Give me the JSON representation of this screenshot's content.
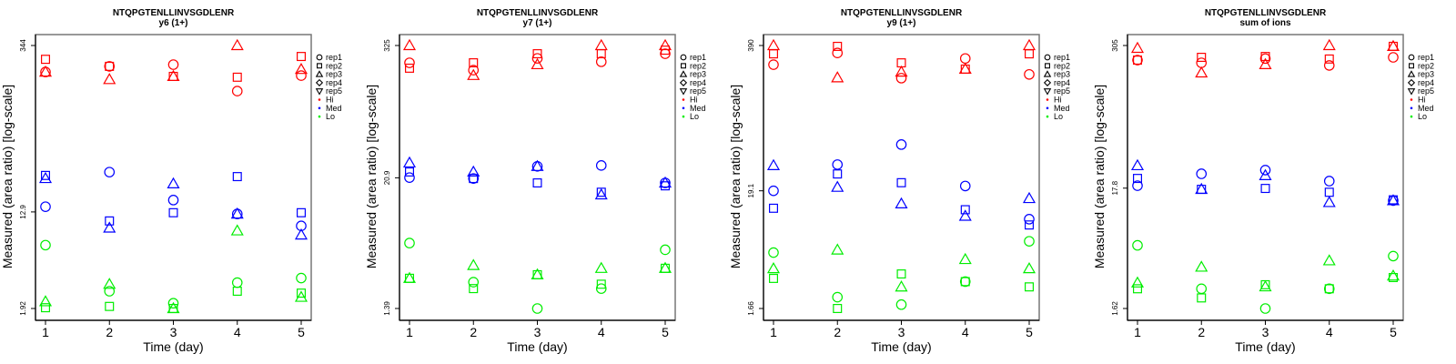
{
  "colors": {
    "Hi": "#ff0000",
    "Med": "#0000ff",
    "Lo": "#00ee00"
  },
  "chart_data": [
    {
      "type": "scatter",
      "title": "NTQPGTENLLINVSGDLENR",
      "subtitle": "y6 (1+)",
      "xlabel": "Time (day)",
      "ylabel": "Measured (area ratio) [log-scale]",
      "yscale": "log",
      "x_ticks": [
        "1",
        "2",
        "3",
        "4",
        "5"
      ],
      "y_ticks": [
        {
          "value": 344,
          "label": "344"
        },
        {
          "value": 12.9,
          "label": "12.9"
        },
        {
          "value": 1.92,
          "label": "1.92"
        }
      ],
      "ylim": [
        1.92,
        344
      ],
      "legend": [
        "rep1",
        "rep2",
        "rep3",
        "rep4",
        "rep5",
        "Hi",
        "Med",
        "Lo"
      ],
      "points": [
        [
          1,
          "Hi",
          "rep2",
          262
        ],
        [
          1,
          "Hi",
          "rep1",
          204
        ],
        [
          1,
          "Hi",
          "rep3",
          204
        ],
        [
          1,
          "Med",
          "rep2",
          26.5
        ],
        [
          1,
          "Med",
          "rep3",
          25.0
        ],
        [
          1,
          "Med",
          "rep1",
          14.3
        ],
        [
          1,
          "Lo",
          "rep1",
          6.7
        ],
        [
          1,
          "Lo",
          "rep3",
          2.2
        ],
        [
          1,
          "Lo",
          "rep2",
          1.95
        ],
        [
          2,
          "Hi",
          "rep1",
          228
        ],
        [
          2,
          "Hi",
          "rep2",
          228
        ],
        [
          2,
          "Hi",
          "rep3",
          176
        ],
        [
          2,
          "Med",
          "rep1",
          28.3
        ],
        [
          2,
          "Med",
          "rep2",
          10.8
        ],
        [
          2,
          "Med",
          "rep3",
          9.4
        ],
        [
          2,
          "Lo",
          "rep3",
          3.1
        ],
        [
          2,
          "Lo",
          "rep1",
          2.7
        ],
        [
          2,
          "Lo",
          "rep2",
          2.0
        ],
        [
          3,
          "Hi",
          "rep1",
          236
        ],
        [
          3,
          "Hi",
          "rep2",
          187
        ],
        [
          3,
          "Hi",
          "rep3",
          187
        ],
        [
          3,
          "Med",
          "rep3",
          22.5
        ],
        [
          3,
          "Med",
          "rep1",
          16.3
        ],
        [
          3,
          "Med",
          "rep2",
          12.7
        ],
        [
          3,
          "Lo",
          "rep1",
          2.13
        ],
        [
          3,
          "Lo",
          "rep2",
          1.92
        ],
        [
          3,
          "Lo",
          "rep3",
          1.92
        ],
        [
          4,
          "Hi",
          "rep3",
          344
        ],
        [
          4,
          "Hi",
          "rep2",
          184
        ],
        [
          4,
          "Hi",
          "rep1",
          140
        ],
        [
          4,
          "Med",
          "rep2",
          25.9
        ],
        [
          4,
          "Med",
          "rep1",
          12.4
        ],
        [
          4,
          "Med",
          "rep3",
          12.4
        ],
        [
          4,
          "Lo",
          "rep3",
          8.9
        ],
        [
          4,
          "Lo",
          "rep1",
          3.2
        ],
        [
          4,
          "Lo",
          "rep2",
          2.7
        ],
        [
          5,
          "Hi",
          "rep2",
          277
        ],
        [
          5,
          "Hi",
          "rep3",
          215
        ],
        [
          5,
          "Hi",
          "rep1",
          190
        ],
        [
          5,
          "Med",
          "rep2",
          12.7
        ],
        [
          5,
          "Med",
          "rep1",
          9.8
        ],
        [
          5,
          "Med",
          "rep3",
          8.2
        ],
        [
          5,
          "Lo",
          "rep1",
          3.5
        ],
        [
          5,
          "Lo",
          "rep2",
          2.6
        ],
        [
          5,
          "Lo",
          "rep3",
          2.4
        ]
      ]
    },
    {
      "type": "scatter",
      "title": "NTQPGTENLLINVSGDLENR",
      "subtitle": "y7 (1+)",
      "xlabel": "Time (day)",
      "ylabel": "Measured (area ratio) [log-scale]",
      "yscale": "log",
      "x_ticks": [
        "1",
        "2",
        "3",
        "4",
        "5"
      ],
      "y_ticks": [
        {
          "value": 325,
          "label": "325"
        },
        {
          "value": 20.9,
          "label": "20.9"
        },
        {
          "value": 1.39,
          "label": "1.39"
        }
      ],
      "ylim": [
        1.39,
        325
      ],
      "legend": [
        "rep1",
        "rep2",
        "rep3",
        "rep4",
        "rep5",
        "Hi",
        "Med",
        "Lo"
      ],
      "points": [
        [
          1,
          "Hi",
          "rep3",
          325
        ],
        [
          1,
          "Hi",
          "rep1",
          227
        ],
        [
          1,
          "Hi",
          "rep2",
          203
        ],
        [
          1,
          "Med",
          "rep3",
          28.5
        ],
        [
          1,
          "Med",
          "rep2",
          23.6
        ],
        [
          1,
          "Med",
          "rep1",
          21.0
        ],
        [
          1,
          "Lo",
          "rep1",
          5.4
        ],
        [
          1,
          "Lo",
          "rep3",
          2.6
        ],
        [
          1,
          "Lo",
          "rep2",
          2.6
        ],
        [
          2,
          "Hi",
          "rep2",
          227
        ],
        [
          2,
          "Hi",
          "rep1",
          195
        ],
        [
          2,
          "Hi",
          "rep3",
          175
        ],
        [
          2,
          "Med",
          "rep3",
          23.6
        ],
        [
          2,
          "Med",
          "rep2",
          20.6
        ],
        [
          2,
          "Med",
          "rep1",
          20.6
        ],
        [
          2,
          "Lo",
          "rep3",
          3.4
        ],
        [
          2,
          "Lo",
          "rep1",
          2.4
        ],
        [
          2,
          "Lo",
          "rep2",
          2.1
        ],
        [
          3,
          "Hi",
          "rep2",
          274
        ],
        [
          3,
          "Hi",
          "rep1",
          249
        ],
        [
          3,
          "Hi",
          "rep3",
          219
        ],
        [
          3,
          "Med",
          "rep1",
          26.5
        ],
        [
          3,
          "Med",
          "rep3",
          26.5
        ],
        [
          3,
          "Med",
          "rep2",
          18.8
        ],
        [
          3,
          "Lo",
          "rep2",
          2.8
        ],
        [
          3,
          "Lo",
          "rep3",
          2.8
        ],
        [
          3,
          "Lo",
          "rep1",
          1.39
        ],
        [
          4,
          "Hi",
          "rep3",
          325
        ],
        [
          4,
          "Hi",
          "rep2",
          274
        ],
        [
          4,
          "Hi",
          "rep1",
          232
        ],
        [
          4,
          "Med",
          "rep1",
          27.0
        ],
        [
          4,
          "Med",
          "rep2",
          15.5
        ],
        [
          4,
          "Med",
          "rep3",
          14.7
        ],
        [
          4,
          "Lo",
          "rep3",
          3.2
        ],
        [
          4,
          "Lo",
          "rep2",
          2.3
        ],
        [
          4,
          "Lo",
          "rep1",
          2.1
        ],
        [
          5,
          "Hi",
          "rep3",
          325
        ],
        [
          5,
          "Hi",
          "rep2",
          295
        ],
        [
          5,
          "Hi",
          "rep1",
          274
        ],
        [
          5,
          "Med",
          "rep3",
          18.8
        ],
        [
          5,
          "Med",
          "rep1",
          18.8
        ],
        [
          5,
          "Med",
          "rep2",
          17.7
        ],
        [
          5,
          "Lo",
          "rep1",
          4.7
        ],
        [
          5,
          "Lo",
          "rep3",
          3.2
        ],
        [
          5,
          "Lo",
          "rep2",
          3.2
        ]
      ]
    },
    {
      "type": "scatter",
      "title": "NTQPGTENLLINVSGDLENR",
      "subtitle": "y9 (1+)",
      "xlabel": "Time (day)",
      "ylabel": "Measured (area ratio) [log-scale]",
      "yscale": "log",
      "x_ticks": [
        "1",
        "2",
        "3",
        "4",
        "5"
      ],
      "y_ticks": [
        {
          "value": 390,
          "label": "390"
        },
        {
          "value": 19.1,
          "label": "19.1"
        },
        {
          "value": 1.66,
          "label": "1.66"
        }
      ],
      "ylim": [
        1.66,
        390
      ],
      "legend": [
        "rep1",
        "rep2",
        "rep3",
        "rep4",
        "rep5",
        "Hi",
        "Med",
        "Lo"
      ],
      "points": [
        [
          1,
          "Hi",
          "rep3",
          390
        ],
        [
          1,
          "Hi",
          "rep2",
          328
        ],
        [
          1,
          "Hi",
          "rep1",
          262
        ],
        [
          1,
          "Med",
          "rep3",
          32.3
        ],
        [
          1,
          "Med",
          "rep1",
          19.1
        ],
        [
          1,
          "Med",
          "rep2",
          13.3
        ],
        [
          1,
          "Lo",
          "rep1",
          5.3
        ],
        [
          1,
          "Lo",
          "rep3",
          3.8
        ],
        [
          1,
          "Lo",
          "rep2",
          3.1
        ],
        [
          2,
          "Hi",
          "rep2",
          383
        ],
        [
          2,
          "Hi",
          "rep1",
          334
        ],
        [
          2,
          "Hi",
          "rep3",
          200
        ],
        [
          2,
          "Med",
          "rep1",
          32.9
        ],
        [
          2,
          "Med",
          "rep2",
          27.1
        ],
        [
          2,
          "Med",
          "rep3",
          20.6
        ],
        [
          2,
          "Lo",
          "rep3",
          5.6
        ],
        [
          2,
          "Lo",
          "rep1",
          2.1
        ],
        [
          2,
          "Lo",
          "rep2",
          1.66
        ],
        [
          3,
          "Hi",
          "rep2",
          272
        ],
        [
          3,
          "Hi",
          "rep3",
          225
        ],
        [
          3,
          "Hi",
          "rep1",
          198
        ],
        [
          3,
          "Med",
          "rep1",
          49.9
        ],
        [
          3,
          "Med",
          "rep2",
          22.6
        ],
        [
          3,
          "Med",
          "rep3",
          14.6
        ],
        [
          3,
          "Lo",
          "rep2",
          3.4
        ],
        [
          3,
          "Lo",
          "rep3",
          2.6
        ],
        [
          3,
          "Lo",
          "rep1",
          1.8
        ],
        [
          4,
          "Hi",
          "rep1",
          298
        ],
        [
          4,
          "Hi",
          "rep3",
          239
        ],
        [
          4,
          "Hi",
          "rep2",
          239
        ],
        [
          4,
          "Med",
          "rep1",
          21.1
        ],
        [
          4,
          "Med",
          "rep2",
          12.9
        ],
        [
          4,
          "Med",
          "rep3",
          11.3
        ],
        [
          4,
          "Lo",
          "rep3",
          4.6
        ],
        [
          4,
          "Lo",
          "rep1",
          2.9
        ],
        [
          4,
          "Lo",
          "rep2",
          2.9
        ],
        [
          5,
          "Hi",
          "rep3",
          390
        ],
        [
          5,
          "Hi",
          "rep2",
          328
        ],
        [
          5,
          "Hi",
          "rep1",
          214
        ],
        [
          5,
          "Med",
          "rep3",
          16.3
        ],
        [
          5,
          "Med",
          "rep1",
          10.6
        ],
        [
          5,
          "Med",
          "rep2",
          9.4
        ],
        [
          5,
          "Lo",
          "rep1",
          6.7
        ],
        [
          5,
          "Lo",
          "rep3",
          3.8
        ],
        [
          5,
          "Lo",
          "rep2",
          2.6
        ]
      ]
    },
    {
      "type": "scatter",
      "title": "NTQPGTENLLINVSGDLENR",
      "subtitle": "sum of ions",
      "xlabel": "Time (day)",
      "ylabel": "Measured (area ratio) [log-scale]",
      "yscale": "log",
      "x_ticks": [
        "1",
        "2",
        "3",
        "4",
        "5"
      ],
      "y_ticks": [
        {
          "value": 305,
          "label": "305"
        },
        {
          "value": 17.8,
          "label": "17.8"
        },
        {
          "value": 1.62,
          "label": "1.62"
        }
      ],
      "ylim": [
        1.62,
        305
      ],
      "legend": [
        "rep1",
        "rep2",
        "rep3",
        "rep4",
        "rep5",
        "Hi",
        "Med",
        "Lo"
      ],
      "points": [
        [
          1,
          "Hi",
          "rep3",
          289
        ],
        [
          1,
          "Hi",
          "rep1",
          228
        ],
        [
          1,
          "Hi",
          "rep2",
          228
        ],
        [
          1,
          "Med",
          "rep3",
          27.9
        ],
        [
          1,
          "Med",
          "rep2",
          21.6
        ],
        [
          1,
          "Med",
          "rep1",
          18.7
        ],
        [
          1,
          "Lo",
          "rep1",
          5.7
        ],
        [
          1,
          "Lo",
          "rep3",
          2.7
        ],
        [
          1,
          "Lo",
          "rep2",
          2.4
        ],
        [
          2,
          "Hi",
          "rep2",
          241
        ],
        [
          2,
          "Hi",
          "rep1",
          216
        ],
        [
          2,
          "Hi",
          "rep3",
          177
        ],
        [
          2,
          "Med",
          "rep1",
          23.7
        ],
        [
          2,
          "Med",
          "rep2",
          17.4
        ],
        [
          2,
          "Med",
          "rep3",
          17.4
        ],
        [
          2,
          "Lo",
          "rep3",
          3.7
        ],
        [
          2,
          "Lo",
          "rep1",
          2.4
        ],
        [
          2,
          "Lo",
          "rep2",
          2.0
        ],
        [
          3,
          "Hi",
          "rep2",
          245
        ],
        [
          3,
          "Hi",
          "rep1",
          235
        ],
        [
          3,
          "Hi",
          "rep3",
          209
        ],
        [
          3,
          "Med",
          "rep1",
          25.5
        ],
        [
          3,
          "Med",
          "rep3",
          22.9
        ],
        [
          3,
          "Med",
          "rep2",
          17.7
        ],
        [
          3,
          "Lo",
          "rep2",
          2.6
        ],
        [
          3,
          "Lo",
          "rep3",
          2.5
        ],
        [
          3,
          "Lo",
          "rep1",
          1.62
        ],
        [
          4,
          "Hi",
          "rep3",
          305
        ],
        [
          4,
          "Hi",
          "rep2",
          233
        ],
        [
          4,
          "Hi",
          "rep1",
          205
        ],
        [
          4,
          "Med",
          "rep1",
          20.5
        ],
        [
          4,
          "Med",
          "rep2",
          16.4
        ],
        [
          4,
          "Med",
          "rep3",
          13.4
        ],
        [
          4,
          "Lo",
          "rep3",
          4.2
        ],
        [
          4,
          "Lo",
          "rep1",
          2.4
        ],
        [
          4,
          "Lo",
          "rep2",
          2.4
        ],
        [
          5,
          "Hi",
          "rep3",
          300
        ],
        [
          5,
          "Hi",
          "rep2",
          300
        ],
        [
          5,
          "Hi",
          "rep1",
          241
        ],
        [
          5,
          "Med",
          "rep1",
          13.9
        ],
        [
          5,
          "Med",
          "rep3",
          13.9
        ],
        [
          5,
          "Med",
          "rep2",
          14.1
        ],
        [
          5,
          "Lo",
          "rep1",
          4.6
        ],
        [
          5,
          "Lo",
          "rep3",
          3.1
        ],
        [
          5,
          "Lo",
          "rep2",
          3.0
        ]
      ]
    }
  ]
}
